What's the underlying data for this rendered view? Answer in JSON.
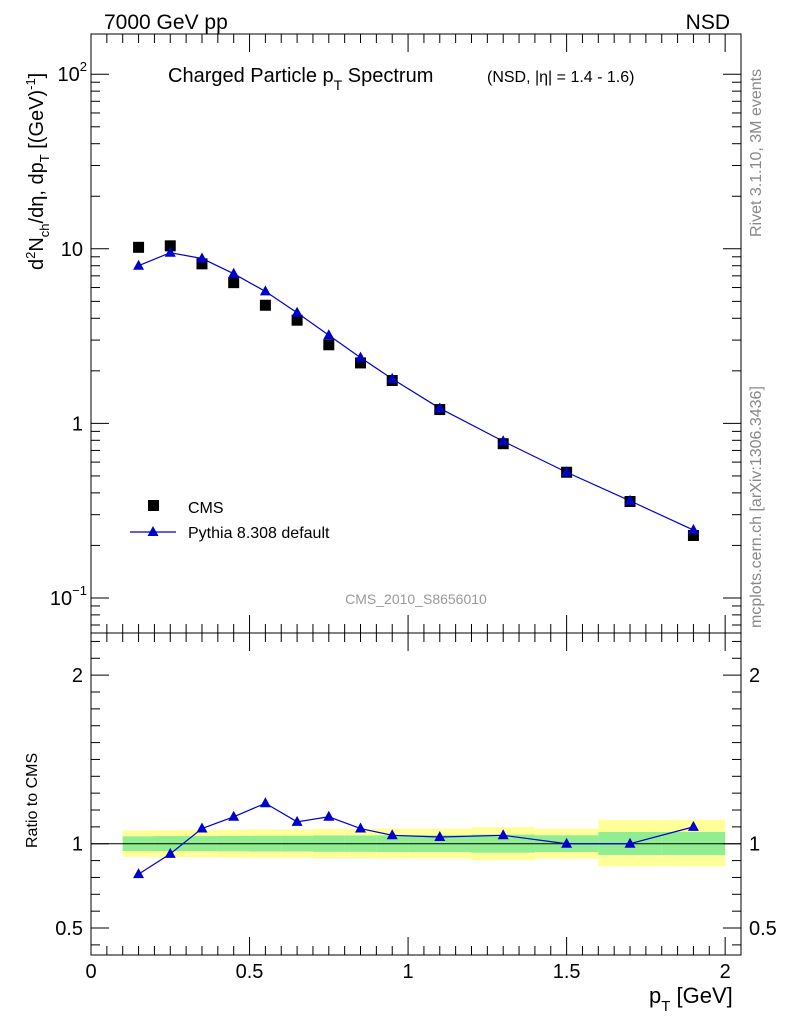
{
  "header": {
    "left": "7000 GeV pp",
    "right": "NSD"
  },
  "side_labels": {
    "rivet": "Rivet 3.1.10,  3M events",
    "mcplots": "mcplots.cern.ch [arXiv:1306.3436]"
  },
  "chart_data": [
    {
      "type": "scatter",
      "title": "Charged Particle p_T Spectrum",
      "title_main": "Charged Particle p",
      "title_sub": "T",
      "title_tail": " Spectrum",
      "subtitle": "(NSD, |η| = 1.4 - 1.6)",
      "ylabel": "d²N_ch/dη, dp_T [(GeV)⁻¹]",
      "watermark": "CMS_2010_S8656010",
      "log_y": true,
      "xlim": [
        0,
        2.05
      ],
      "ylim": [
        0.063,
        170
      ],
      "y_ticks": [
        {
          "value": 0.1,
          "base": "10",
          "exp": "−1"
        },
        {
          "value": 1,
          "base": "1",
          "exp": ""
        },
        {
          "value": 10,
          "base": "10",
          "exp": ""
        },
        {
          "value": 100,
          "base": "10",
          "exp": "2"
        }
      ],
      "legend_position": "bottom-left",
      "series": [
        {
          "name": "CMS",
          "marker": "square",
          "color": "#000000",
          "x": [
            0.15,
            0.25,
            0.35,
            0.45,
            0.55,
            0.65,
            0.75,
            0.85,
            0.95,
            1.1,
            1.3,
            1.5,
            1.7,
            1.9
          ],
          "y": [
            10.2,
            10.4,
            8.2,
            6.4,
            4.75,
            3.9,
            2.82,
            2.22,
            1.76,
            1.2,
            0.765,
            0.525,
            0.357,
            0.228
          ]
        },
        {
          "name": "Pythia 8.308 default",
          "marker": "triangle",
          "line": true,
          "color": "#0000cc",
          "x": [
            0.15,
            0.25,
            0.35,
            0.45,
            0.55,
            0.65,
            0.75,
            0.85,
            0.95,
            1.1,
            1.3,
            1.5,
            1.7,
            1.9
          ],
          "y": [
            8.0,
            9.5,
            8.8,
            7.2,
            5.7,
            4.3,
            3.2,
            2.38,
            1.8,
            1.22,
            0.79,
            0.525,
            0.36,
            0.245
          ]
        }
      ]
    },
    {
      "type": "line",
      "ylabel": "Ratio to CMS",
      "xlabel": "p_T [GeV]",
      "xlabel_main": "p",
      "xlabel_sub": "T",
      "xlabel_tail": " [GeV]",
      "xlim": [
        0,
        2.05
      ],
      "ylim": [
        0.34,
        2.25
      ],
      "y_ticks": [
        0.5,
        1,
        2
      ],
      "y_tick_labels": [
        "0.5",
        "1",
        "2"
      ],
      "x_ticks": [
        0,
        0.5,
        1,
        1.5,
        2
      ],
      "x_tick_labels": [
        "0",
        "0.5",
        "1",
        "1.5",
        "2"
      ],
      "bands": {
        "outer_color": "#ffff99",
        "inner_color": "#90ee90",
        "bins": [
          {
            "x0": 0.1,
            "x1": 0.2,
            "outer": [
              0.922,
              1.079
            ],
            "inner": [
              0.957,
              1.044
            ]
          },
          {
            "x0": 0.2,
            "x1": 0.3,
            "outer": [
              0.92,
              1.081
            ],
            "inner": [
              0.956,
              1.045
            ]
          },
          {
            "x0": 0.3,
            "x1": 0.4,
            "outer": [
              0.92,
              1.081
            ],
            "inner": [
              0.956,
              1.045
            ]
          },
          {
            "x0": 0.4,
            "x1": 0.5,
            "outer": [
              0.918,
              1.083
            ],
            "inner": [
              0.955,
              1.046
            ]
          },
          {
            "x0": 0.5,
            "x1": 0.6,
            "outer": [
              0.916,
              1.085
            ],
            "inner": [
              0.954,
              1.047
            ]
          },
          {
            "x0": 0.6,
            "x1": 0.7,
            "outer": [
              0.916,
              1.085
            ],
            "inner": [
              0.954,
              1.047
            ]
          },
          {
            "x0": 0.7,
            "x1": 0.8,
            "outer": [
              0.913,
              1.088
            ],
            "inner": [
              0.952,
              1.049
            ]
          },
          {
            "x0": 0.8,
            "x1": 0.9,
            "outer": [
              0.913,
              1.088
            ],
            "inner": [
              0.952,
              1.049
            ]
          },
          {
            "x0": 0.9,
            "x1": 1.0,
            "outer": [
              0.911,
              1.09
            ],
            "inner": [
              0.951,
              1.05
            ]
          },
          {
            "x0": 1.0,
            "x1": 1.2,
            "outer": [
              0.911,
              1.09
            ],
            "inner": [
              0.951,
              1.05
            ]
          },
          {
            "x0": 1.2,
            "x1": 1.4,
            "outer": [
              0.903,
              1.098
            ],
            "inner": [
              0.947,
              1.054
            ]
          },
          {
            "x0": 1.4,
            "x1": 1.6,
            "outer": [
              0.911,
              1.09
            ],
            "inner": [
              0.951,
              1.05
            ]
          },
          {
            "x0": 1.6,
            "x1": 1.8,
            "outer": [
              0.866,
              1.142
            ],
            "inner": [
              0.933,
              1.07
            ]
          },
          {
            "x0": 1.8,
            "x1": 2.0,
            "outer": [
              0.866,
              1.142
            ],
            "inner": [
              0.933,
              1.07
            ]
          }
        ]
      },
      "series": [
        {
          "name": "Pythia 8.308 default",
          "color": "#0000cc",
          "x": [
            0.15,
            0.25,
            0.35,
            0.45,
            0.55,
            0.65,
            0.75,
            0.85,
            0.95,
            1.1,
            1.3,
            1.5,
            1.7,
            1.9
          ],
          "y": [
            0.82,
            0.94,
            1.09,
            1.16,
            1.24,
            1.13,
            1.16,
            1.09,
            1.05,
            1.04,
            1.05,
            1.0,
            1.0,
            1.1
          ]
        }
      ]
    }
  ]
}
